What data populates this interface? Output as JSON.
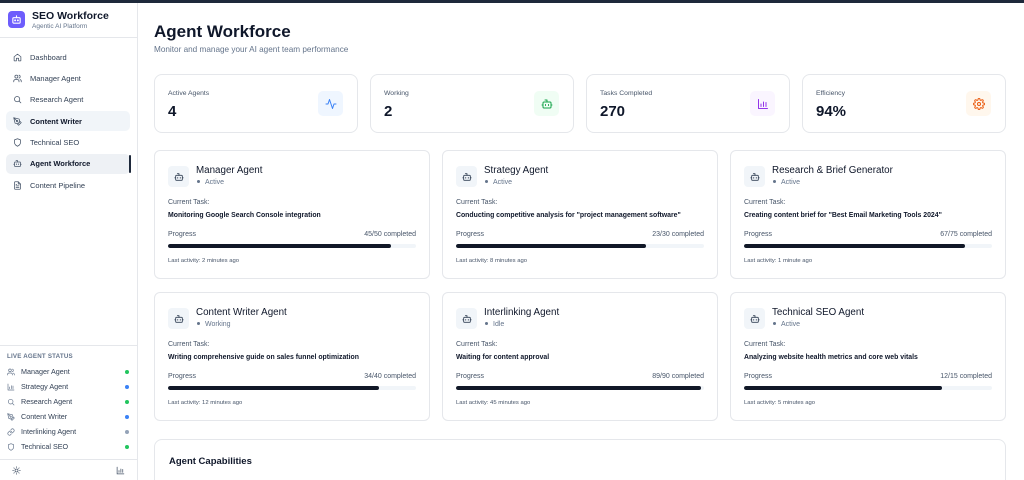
{
  "app": {
    "title": "SEO Workforce",
    "subtitle": "Agentic AI Platform"
  },
  "nav": [
    {
      "label": "Dashboard",
      "icon": "home-icon"
    },
    {
      "label": "Manager Agent",
      "icon": "users-icon"
    },
    {
      "label": "Research Agent",
      "icon": "search-icon"
    },
    {
      "label": "Content Writer",
      "icon": "pen-tool-icon"
    },
    {
      "label": "Technical SEO",
      "icon": "shield-icon"
    },
    {
      "label": "Agent Workforce",
      "icon": "bot-icon"
    },
    {
      "label": "Content Pipeline",
      "icon": "file-icon"
    }
  ],
  "live_status": {
    "title": "LIVE AGENT STATUS",
    "items": [
      {
        "label": "Manager Agent",
        "icon": "users-icon",
        "dot_color": "#22c55e"
      },
      {
        "label": "Strategy Agent",
        "icon": "bar-chart-icon",
        "dot_color": "#3b82f6"
      },
      {
        "label": "Research Agent",
        "icon": "search-icon",
        "dot_color": "#22c55e"
      },
      {
        "label": "Content Writer",
        "icon": "pen-tool-icon",
        "dot_color": "#3b82f6"
      },
      {
        "label": "Interlinking Agent",
        "icon": "link-icon",
        "dot_color": "#94a3b8"
      },
      {
        "label": "Technical SEO",
        "icon": "shield-icon",
        "dot_color": "#22c55e"
      }
    ]
  },
  "page": {
    "title": "Agent Workforce",
    "subtitle": "Monitor and manage your AI agent team performance"
  },
  "stats": [
    {
      "label": "Active Agents",
      "value": "4",
      "icon": "activity-icon",
      "color": "#3b82f6",
      "bg": "#eff6ff"
    },
    {
      "label": "Working",
      "value": "2",
      "icon": "bot-icon",
      "color": "#16a34a",
      "bg": "#f0fdf4"
    },
    {
      "label": "Tasks Completed",
      "value": "270",
      "icon": "bar-chart-icon",
      "color": "#9333ea",
      "bg": "#faf5ff"
    },
    {
      "label": "Efficiency",
      "value": "94%",
      "icon": "gear-icon",
      "color": "#ea580c",
      "bg": "#fff7ed"
    }
  ],
  "agents": [
    {
      "name": "Manager Agent",
      "status": "Active",
      "task_label": "Current Task:",
      "task": "Monitoring Google Search Console integration",
      "progress_label": "Progress",
      "progress_text": "45/50 completed",
      "progress": 0.9,
      "last_activity": "Last activity: 2 minutes ago"
    },
    {
      "name": "Strategy Agent",
      "status": "Active",
      "task_label": "Current Task:",
      "task": "Conducting competitive analysis for \"project management software\"",
      "progress_label": "Progress",
      "progress_text": "23/30 completed",
      "progress": 0.767,
      "last_activity": "Last activity: 8 minutes ago"
    },
    {
      "name": "Research & Brief Generator",
      "status": "Active",
      "task_label": "Current Task:",
      "task": "Creating content brief for \"Best Email Marketing Tools 2024\"",
      "progress_label": "Progress",
      "progress_text": "67/75 completed",
      "progress": 0.893,
      "last_activity": "Last activity: 1 minute ago"
    },
    {
      "name": "Content Writer Agent",
      "status": "Working",
      "task_label": "Current Task:",
      "task": "Writing comprehensive guide on sales funnel optimization",
      "progress_label": "Progress",
      "progress_text": "34/40 completed",
      "progress": 0.85,
      "last_activity": "Last activity: 12 minutes ago"
    },
    {
      "name": "Interlinking Agent",
      "status": "Idle",
      "task_label": "Current Task:",
      "task": "Waiting for content approval",
      "progress_label": "Progress",
      "progress_text": "89/90 completed",
      "progress": 0.989,
      "last_activity": "Last activity: 45 minutes ago"
    },
    {
      "name": "Technical SEO Agent",
      "status": "Active",
      "task_label": "Current Task:",
      "task": "Analyzing website health metrics and core web vitals",
      "progress_label": "Progress",
      "progress_text": "12/15 completed",
      "progress": 0.8,
      "last_activity": "Last activity: 5 minutes ago"
    }
  ],
  "capabilities": {
    "title": "Agent Capabilities"
  },
  "footer_icons": [
    "sun-icon",
    "bar-chart-icon"
  ]
}
